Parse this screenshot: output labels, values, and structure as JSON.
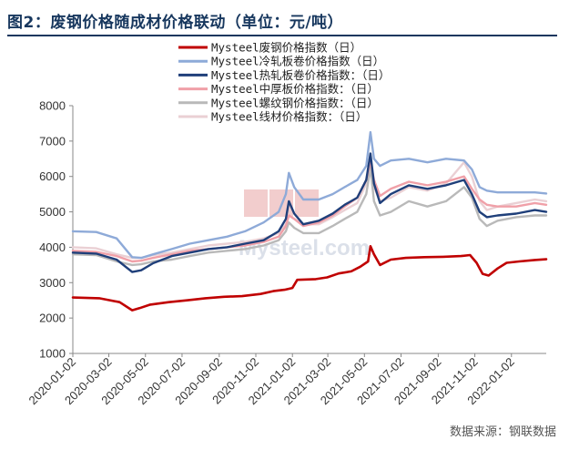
{
  "title": "图2：废钢价格随成材价格联动（单位：元/吨）",
  "source": "数据来源：钢联数据",
  "watermark": "Mysteel.com",
  "chart_data": {
    "type": "line",
    "ylim": [
      1000,
      8000
    ],
    "yticks": [
      1000,
      2000,
      3000,
      4000,
      5000,
      6000,
      7000,
      8000
    ],
    "xlim": [
      "2020-01-02",
      "2022-03-01"
    ],
    "xticks": [
      "2020-01-02",
      "2020-03-02",
      "2020-05-02",
      "2020-07-02",
      "2020-09-02",
      "2020-11-02",
      "2021-01-02",
      "2021-03-02",
      "2021-05-02",
      "2021-07-02",
      "2021-09-02",
      "2021-11-02",
      "2022-01-02"
    ],
    "grid": false,
    "legend_position": "top",
    "series": [
      {
        "name": "Mysteel废钢价格指数（日）",
        "color": "#c00000",
        "width": 2.6,
        "points": [
          [
            "2020-01-02",
            2580
          ],
          [
            "2020-02-15",
            2560
          ],
          [
            "2020-03-20",
            2450
          ],
          [
            "2020-04-10",
            2220
          ],
          [
            "2020-04-22",
            2280
          ],
          [
            "2020-05-10",
            2380
          ],
          [
            "2020-06-10",
            2450
          ],
          [
            "2020-07-10",
            2500
          ],
          [
            "2020-08-10",
            2560
          ],
          [
            "2020-09-10",
            2600
          ],
          [
            "2020-10-10",
            2620
          ],
          [
            "2020-11-10",
            2680
          ],
          [
            "2020-12-01",
            2760
          ],
          [
            "2020-12-20",
            2800
          ],
          [
            "2021-01-02",
            2850
          ],
          [
            "2021-01-10",
            3080
          ],
          [
            "2021-02-10",
            3100
          ],
          [
            "2021-03-01",
            3150
          ],
          [
            "2021-03-20",
            3260
          ],
          [
            "2021-04-10",
            3320
          ],
          [
            "2021-04-25",
            3450
          ],
          [
            "2021-05-08",
            3600
          ],
          [
            "2021-05-12",
            4030
          ],
          [
            "2021-05-18",
            3800
          ],
          [
            "2021-05-28",
            3500
          ],
          [
            "2021-06-15",
            3650
          ],
          [
            "2021-07-10",
            3700
          ],
          [
            "2021-08-10",
            3720
          ],
          [
            "2021-09-10",
            3730
          ],
          [
            "2021-10-10",
            3750
          ],
          [
            "2021-10-25",
            3780
          ],
          [
            "2021-11-05",
            3560
          ],
          [
            "2021-11-15",
            3250
          ],
          [
            "2021-11-25",
            3200
          ],
          [
            "2021-12-10",
            3400
          ],
          [
            "2021-12-25",
            3560
          ],
          [
            "2022-01-15",
            3600
          ],
          [
            "2022-02-10",
            3640
          ],
          [
            "2022-03-01",
            3660
          ]
        ]
      },
      {
        "name": "Mysteel冷轧板卷价格指数（日）",
        "color": "#8eaad8",
        "width": 2.4,
        "points": [
          [
            "2020-01-02",
            4450
          ],
          [
            "2020-02-10",
            4430
          ],
          [
            "2020-03-15",
            4250
          ],
          [
            "2020-04-10",
            3720
          ],
          [
            "2020-04-25",
            3700
          ],
          [
            "2020-05-15",
            3800
          ],
          [
            "2020-06-15",
            3950
          ],
          [
            "2020-07-15",
            4100
          ],
          [
            "2020-08-15",
            4200
          ],
          [
            "2020-09-15",
            4300
          ],
          [
            "2020-10-15",
            4450
          ],
          [
            "2020-11-15",
            4700
          ],
          [
            "2020-12-10",
            5000
          ],
          [
            "2020-12-22",
            5500
          ],
          [
            "2020-12-27",
            6100
          ],
          [
            "2021-01-05",
            5700
          ],
          [
            "2021-01-20",
            5350
          ],
          [
            "2021-02-15",
            5350
          ],
          [
            "2021-03-10",
            5500
          ],
          [
            "2021-03-30",
            5700
          ],
          [
            "2021-04-20",
            5900
          ],
          [
            "2021-05-05",
            6300
          ],
          [
            "2021-05-12",
            7250
          ],
          [
            "2021-05-18",
            6500
          ],
          [
            "2021-05-28",
            6300
          ],
          [
            "2021-06-15",
            6450
          ],
          [
            "2021-07-15",
            6500
          ],
          [
            "2021-08-15",
            6400
          ],
          [
            "2021-09-15",
            6500
          ],
          [
            "2021-10-15",
            6450
          ],
          [
            "2021-10-28",
            6200
          ],
          [
            "2021-11-10",
            5700
          ],
          [
            "2021-11-22",
            5600
          ],
          [
            "2021-12-10",
            5550
          ],
          [
            "2022-01-10",
            5550
          ],
          [
            "2022-02-10",
            5550
          ],
          [
            "2022-03-01",
            5520
          ]
        ]
      },
      {
        "name": "Mysteel热轧板卷价格指数：（日）",
        "color": "#1f3f7a",
        "width": 2.4,
        "points": [
          [
            "2020-01-02",
            3850
          ],
          [
            "2020-02-10",
            3820
          ],
          [
            "2020-03-15",
            3650
          ],
          [
            "2020-04-10",
            3300
          ],
          [
            "2020-04-25",
            3350
          ],
          [
            "2020-05-15",
            3550
          ],
          [
            "2020-06-15",
            3750
          ],
          [
            "2020-07-15",
            3850
          ],
          [
            "2020-08-15",
            3950
          ],
          [
            "2020-09-15",
            4000
          ],
          [
            "2020-10-15",
            4100
          ],
          [
            "2020-11-15",
            4200
          ],
          [
            "2020-12-10",
            4450
          ],
          [
            "2020-12-22",
            4800
          ],
          [
            "2020-12-27",
            5300
          ],
          [
            "2021-01-05",
            4950
          ],
          [
            "2021-01-20",
            4650
          ],
          [
            "2021-02-15",
            4750
          ],
          [
            "2021-03-10",
            4950
          ],
          [
            "2021-03-30",
            5200
          ],
          [
            "2021-04-20",
            5400
          ],
          [
            "2021-05-05",
            5900
          ],
          [
            "2021-05-12",
            6650
          ],
          [
            "2021-05-18",
            5800
          ],
          [
            "2021-05-28",
            5250
          ],
          [
            "2021-06-15",
            5500
          ],
          [
            "2021-07-15",
            5750
          ],
          [
            "2021-08-15",
            5650
          ],
          [
            "2021-09-15",
            5750
          ],
          [
            "2021-10-15",
            5900
          ],
          [
            "2021-10-28",
            5500
          ],
          [
            "2021-11-10",
            5000
          ],
          [
            "2021-11-22",
            4850
          ],
          [
            "2021-12-10",
            4900
          ],
          [
            "2022-01-10",
            4950
          ],
          [
            "2022-02-10",
            5050
          ],
          [
            "2022-03-01",
            5000
          ]
        ]
      },
      {
        "name": "Mysteel中厚板价格指数：（日）",
        "color": "#f0a0a8",
        "width": 2.4,
        "points": [
          [
            "2020-01-02",
            3900
          ],
          [
            "2020-02-10",
            3870
          ],
          [
            "2020-03-15",
            3750
          ],
          [
            "2020-04-10",
            3600
          ],
          [
            "2020-04-25",
            3620
          ],
          [
            "2020-05-15",
            3700
          ],
          [
            "2020-06-15",
            3800
          ],
          [
            "2020-07-15",
            3900
          ],
          [
            "2020-08-15",
            3950
          ],
          [
            "2020-09-15",
            4000
          ],
          [
            "2020-10-15",
            4050
          ],
          [
            "2020-11-15",
            4150
          ],
          [
            "2020-12-10",
            4300
          ],
          [
            "2020-12-22",
            4600
          ],
          [
            "2020-12-27",
            4900
          ],
          [
            "2021-01-05",
            4800
          ],
          [
            "2021-01-20",
            4600
          ],
          [
            "2021-02-15",
            4700
          ],
          [
            "2021-03-10",
            4900
          ],
          [
            "2021-03-30",
            5150
          ],
          [
            "2021-04-20",
            5400
          ],
          [
            "2021-05-05",
            5900
          ],
          [
            "2021-05-12",
            6450
          ],
          [
            "2021-05-18",
            5900
          ],
          [
            "2021-05-28",
            5450
          ],
          [
            "2021-06-15",
            5650
          ],
          [
            "2021-07-15",
            5850
          ],
          [
            "2021-08-15",
            5750
          ],
          [
            "2021-09-15",
            5850
          ],
          [
            "2021-10-15",
            6000
          ],
          [
            "2021-10-28",
            5650
          ],
          [
            "2021-11-10",
            5350
          ],
          [
            "2021-11-22",
            5200
          ],
          [
            "2021-12-10",
            5150
          ],
          [
            "2022-01-10",
            5150
          ],
          [
            "2022-02-10",
            5250
          ],
          [
            "2022-03-01",
            5200
          ]
        ]
      },
      {
        "name": "Mysteel螺纹钢价格指数：（日）",
        "color": "#b9b9b9",
        "width": 2.4,
        "points": [
          [
            "2020-01-02",
            3800
          ],
          [
            "2020-02-10",
            3780
          ],
          [
            "2020-03-15",
            3600
          ],
          [
            "2020-04-10",
            3500
          ],
          [
            "2020-04-25",
            3520
          ],
          [
            "2020-05-15",
            3600
          ],
          [
            "2020-06-15",
            3650
          ],
          [
            "2020-07-15",
            3750
          ],
          [
            "2020-08-15",
            3850
          ],
          [
            "2020-09-15",
            3900
          ],
          [
            "2020-10-15",
            3950
          ],
          [
            "2020-11-15",
            4050
          ],
          [
            "2020-12-10",
            4200
          ],
          [
            "2020-12-22",
            4450
          ],
          [
            "2020-12-27",
            4700
          ],
          [
            "2021-01-05",
            4550
          ],
          [
            "2021-01-20",
            4400
          ],
          [
            "2021-02-15",
            4400
          ],
          [
            "2021-03-10",
            4600
          ],
          [
            "2021-03-30",
            4800
          ],
          [
            "2021-04-20",
            5000
          ],
          [
            "2021-05-05",
            5500
          ],
          [
            "2021-05-12",
            6250
          ],
          [
            "2021-05-18",
            5300
          ],
          [
            "2021-05-28",
            4900
          ],
          [
            "2021-06-15",
            5000
          ],
          [
            "2021-07-15",
            5300
          ],
          [
            "2021-08-15",
            5150
          ],
          [
            "2021-09-15",
            5300
          ],
          [
            "2021-10-15",
            5700
          ],
          [
            "2021-10-28",
            5400
          ],
          [
            "2021-11-10",
            4800
          ],
          [
            "2021-11-22",
            4600
          ],
          [
            "2021-12-10",
            4750
          ],
          [
            "2022-01-10",
            4850
          ],
          [
            "2022-02-10",
            4900
          ],
          [
            "2022-03-01",
            4900
          ]
        ]
      },
      {
        "name": "Mysteel线材价格指数：（日）",
        "color": "#ead0d4",
        "width": 2.4,
        "points": [
          [
            "2020-01-02",
            4000
          ],
          [
            "2020-02-10",
            3970
          ],
          [
            "2020-03-15",
            3800
          ],
          [
            "2020-04-10",
            3700
          ],
          [
            "2020-04-25",
            3700
          ],
          [
            "2020-05-15",
            3780
          ],
          [
            "2020-06-15",
            3850
          ],
          [
            "2020-07-15",
            3950
          ],
          [
            "2020-08-15",
            4050
          ],
          [
            "2020-09-15",
            4100
          ],
          [
            "2020-10-15",
            4150
          ],
          [
            "2020-11-15",
            4250
          ],
          [
            "2020-12-10",
            4400
          ],
          [
            "2020-12-22",
            4650
          ],
          [
            "2020-12-27",
            4900
          ],
          [
            "2021-01-05",
            4800
          ],
          [
            "2021-01-20",
            4650
          ],
          [
            "2021-02-15",
            4650
          ],
          [
            "2021-03-10",
            4850
          ],
          [
            "2021-03-30",
            5050
          ],
          [
            "2021-04-20",
            5250
          ],
          [
            "2021-05-05",
            5800
          ],
          [
            "2021-05-12",
            6550
          ],
          [
            "2021-05-18",
            5700
          ],
          [
            "2021-05-28",
            5300
          ],
          [
            "2021-06-15",
            5400
          ],
          [
            "2021-07-15",
            5700
          ],
          [
            "2021-08-15",
            5600
          ],
          [
            "2021-09-15",
            5800
          ],
          [
            "2021-10-15",
            6400
          ],
          [
            "2021-10-28",
            6000
          ],
          [
            "2021-11-10",
            5300
          ],
          [
            "2021-11-22",
            5050
          ],
          [
            "2021-12-10",
            5150
          ],
          [
            "2022-01-10",
            5250
          ],
          [
            "2022-02-10",
            5350
          ],
          [
            "2022-03-01",
            5300
          ]
        ]
      }
    ]
  }
}
